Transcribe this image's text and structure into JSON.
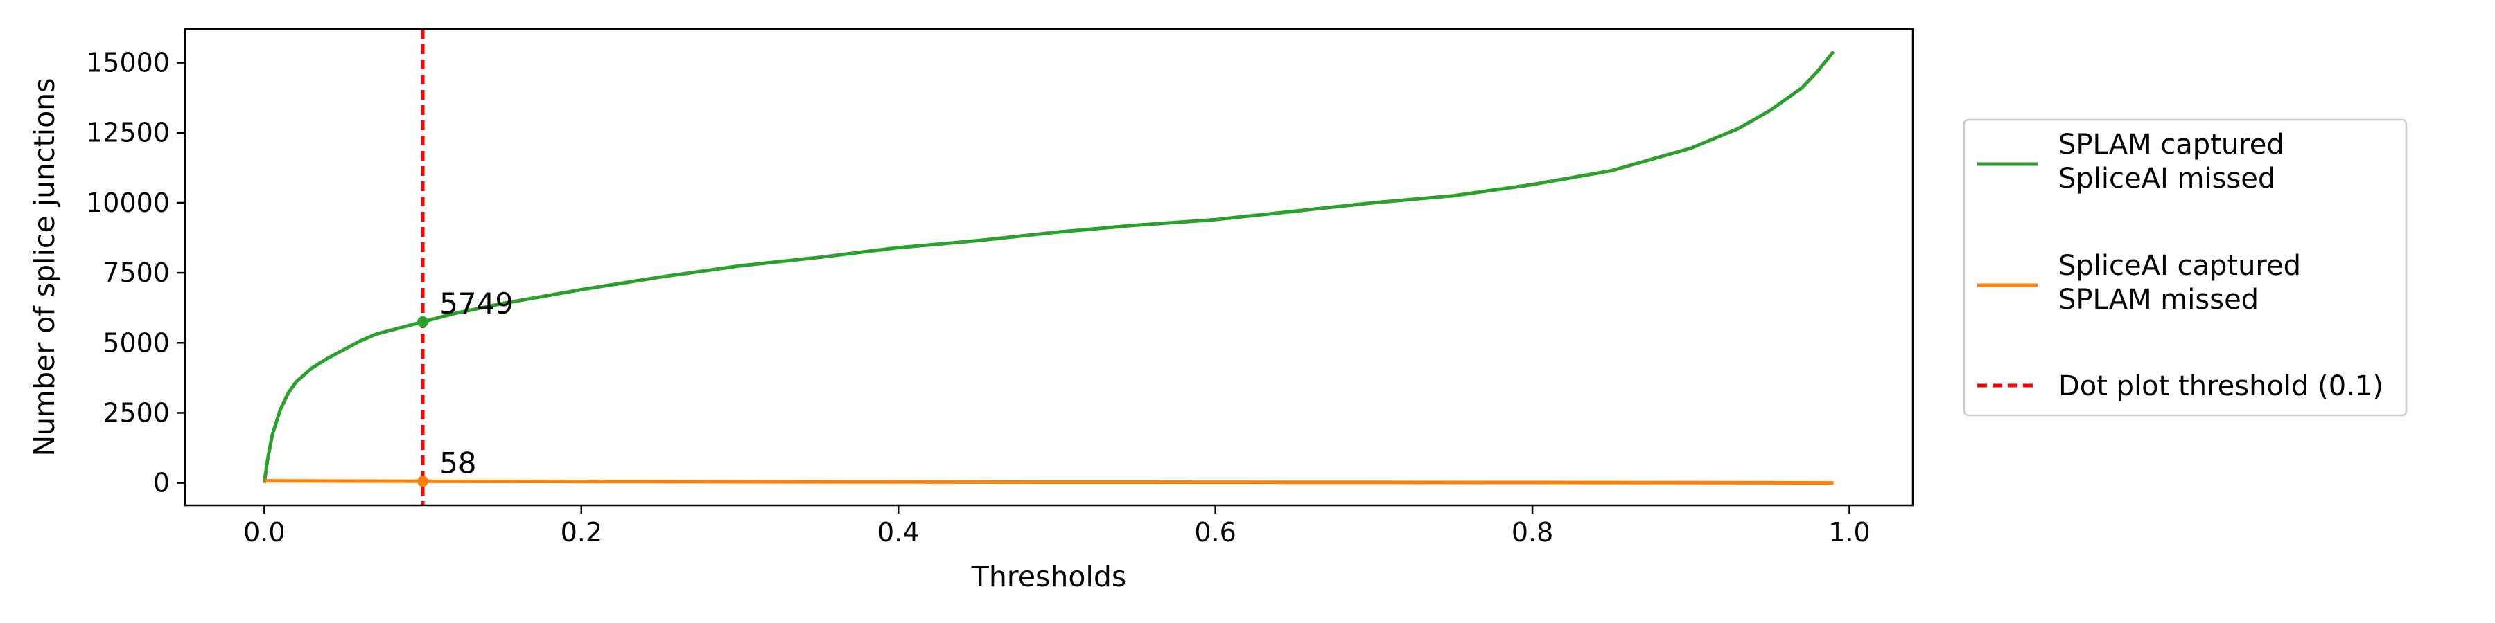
{
  "chart_data": {
    "type": "line",
    "xlabel": "Thresholds",
    "ylabel": "Number of splice junctions",
    "xlim": [
      -0.05,
      1.04
    ],
    "ylim": [
      -800,
      16200
    ],
    "x_ticks": [
      0.0,
      0.2,
      0.4,
      0.6,
      0.8,
      1.0
    ],
    "x_tick_labels": [
      "0.0",
      "0.2",
      "0.4",
      "0.6",
      "0.8",
      "1.0"
    ],
    "y_ticks": [
      0,
      2500,
      5000,
      7500,
      10000,
      12500,
      15000
    ],
    "y_tick_labels": [
      "0",
      "2500",
      "5000",
      "7500",
      "10000",
      "12500",
      "15000"
    ],
    "grid": false,
    "legend_position": "right-outside",
    "series": [
      {
        "name": "SPLAM captured SpliceAI missed",
        "legend_lines": [
          "SPLAM captured",
          "SpliceAI missed"
        ],
        "color": "#2ca02c",
        "x": [
          0.0,
          0.002,
          0.005,
          0.01,
          0.015,
          0.02,
          0.03,
          0.04,
          0.05,
          0.06,
          0.07,
          0.08,
          0.09,
          0.1,
          0.12,
          0.15,
          0.2,
          0.25,
          0.3,
          0.35,
          0.4,
          0.45,
          0.5,
          0.55,
          0.6,
          0.65,
          0.7,
          0.75,
          0.8,
          0.85,
          0.9,
          0.93,
          0.95,
          0.97,
          0.98,
          0.99
        ],
        "y": [
          0,
          800,
          1700,
          2600,
          3200,
          3600,
          4100,
          4450,
          4750,
          5050,
          5300,
          5450,
          5600,
          5749,
          6050,
          6400,
          6900,
          7350,
          7750,
          8050,
          8400,
          8650,
          8950,
          9200,
          9400,
          9700,
          10000,
          10250,
          10650,
          11150,
          11950,
          12650,
          13300,
          14100,
          14700,
          15400
        ]
      },
      {
        "name": "SpliceAI captured SPLAM missed",
        "legend_lines": [
          "SpliceAI captured",
          "SPLAM missed"
        ],
        "color": "#ff7f0e",
        "x": [
          0.0,
          0.05,
          0.1,
          0.2,
          0.3,
          0.4,
          0.5,
          0.6,
          0.7,
          0.8,
          0.9,
          0.95,
          0.99
        ],
        "y": [
          75,
          65,
          58,
          50,
          40,
          32,
          28,
          25,
          20,
          15,
          8,
          5,
          0
        ]
      }
    ],
    "threshold_line": {
      "x": 0.1,
      "label": "Dot plot threshold (0.1)",
      "color": "#ff0000"
    },
    "annotations": [
      {
        "x": 0.1,
        "y": 5749,
        "text": "5749",
        "color": "#2ca02c"
      },
      {
        "x": 0.1,
        "y": 58,
        "text": "58",
        "color": "#ff7f0e"
      }
    ]
  }
}
